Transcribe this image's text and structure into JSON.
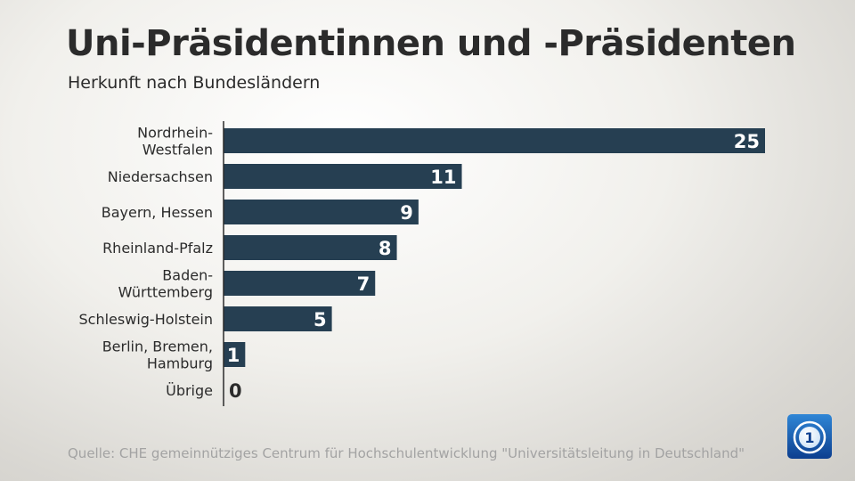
{
  "title": "Uni-Präsidentinnen und -Präsidenten",
  "subtitle": "Herkunft nach Bundesländern",
  "source": "Quelle: CHE gemeinnütziges Centrum für Hochschulentwicklung \"Universitätsleitung in Deutschland\"",
  "logo": {
    "icon": "das-erste-logo-icon",
    "text": "1"
  },
  "colors": {
    "bar": "#263f52",
    "axis": "#2b2b2b",
    "label": "#2b2b2b",
    "value": "#ffffff",
    "value_outside": "#2b2b2b"
  },
  "chart_data": {
    "type": "bar",
    "orientation": "horizontal",
    "title": "Uni-Präsidentinnen und -Präsidenten",
    "subtitle": "Herkunft nach Bundesländern",
    "categories": [
      [
        "Nordrhein-",
        "Westfalen"
      ],
      [
        "Niedersachsen"
      ],
      [
        "Bayern, Hessen"
      ],
      [
        "Rheinland-Pfalz"
      ],
      [
        "Baden-",
        "Württemberg"
      ],
      [
        "Schleswig-Holstein"
      ],
      [
        "Berlin, Bremen,",
        "Hamburg"
      ],
      [
        "Übrige"
      ]
    ],
    "values": [
      25,
      11,
      9,
      8,
      7,
      5,
      1,
      0
    ],
    "xlim": [
      0,
      25
    ],
    "xlabel": "",
    "ylabel": "",
    "grid": false,
    "legend": "none"
  }
}
